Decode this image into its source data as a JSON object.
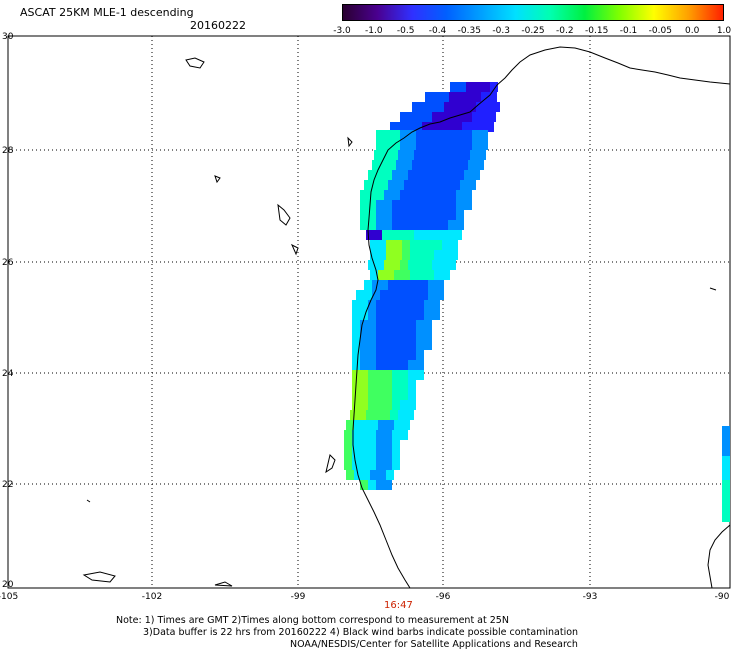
{
  "header": {
    "title": "ASCAT 25KM MLE-1 descending",
    "date": "20160222"
  },
  "colorbar": {
    "labels": [
      "-3.0",
      "-1.0",
      "-0.5",
      "-0.4",
      "-0.35",
      "-0.3",
      "-0.25",
      "-0.2",
      "-0.15",
      "-0.1",
      "-0.05",
      "0.0",
      "1.0"
    ],
    "colors": [
      "#2a0030",
      "#4a0090",
      "#3030ff",
      "#0060ff",
      "#00a0ff",
      "#00e0ff",
      "#00ffb0",
      "#00f040",
      "#80ff00",
      "#ffff00",
      "#ffa000",
      "#ff2000"
    ]
  },
  "map": {
    "lat_labels": [
      "30",
      "28",
      "26",
      "24",
      "22",
      "20"
    ],
    "lon_labels": [
      "-105",
      "-102",
      "-99",
      "-96",
      "-93",
      "-90"
    ],
    "time_label": "16:47"
  },
  "notes": {
    "line1": "Note: 1) Times are GMT 2)Times along bottom correspond to measurement at 25N",
    "line2": "3)Data buffer is 22 hrs from 20160222 4) Black wind barbs indicate possible contamination",
    "line3": "NOAA/NESDIS/Center for Satellite Applications and Research"
  }
}
